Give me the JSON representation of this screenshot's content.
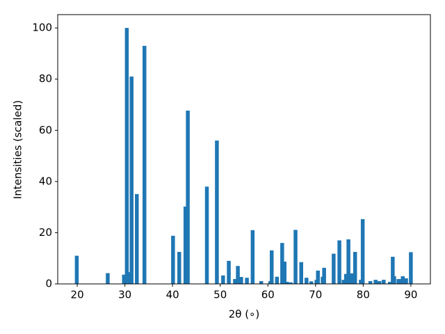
{
  "chart_data": {
    "type": "bar",
    "xlabel": "2θ (∘)",
    "ylabel": "Intensities (scaled)",
    "color": "#1f77b4",
    "x": [
      19.9,
      26.4,
      29.8,
      30.4,
      30.8,
      31.4,
      32.5,
      34.1,
      40.1,
      41.4,
      42.7,
      43.2,
      47.2,
      49.3,
      50.6,
      51.8,
      53.1,
      53.7,
      54.4,
      55.6,
      56.8,
      58.6,
      60.5,
      60.8,
      61.9,
      63.0,
      63.5,
      64.0,
      64.8,
      65.8,
      67.0,
      68.1,
      69.1,
      70.2,
      70.5,
      71.5,
      71.8,
      73.8,
      75.0,
      75.9,
      76.4,
      76.9,
      77.6,
      78.3,
      79.5,
      79.9,
      81.5,
      82.6,
      83.4,
      84.3,
      85.6,
      86.2,
      86.5,
      87.4,
      87.8,
      88.3,
      89.0,
      90.0
    ],
    "values": [
      11,
      4.2,
      3.6,
      100,
      4.6,
      81,
      35.1,
      93,
      18.8,
      12.5,
      30.2,
      67.7,
      38,
      56,
      3.3,
      9,
      1.9,
      7,
      2.7,
      2.4,
      21,
      1.1,
      1.1,
      13.1,
      2.8,
      16,
      8.7,
      0.8,
      0.6,
      21.1,
      8.5,
      2.4,
      1,
      1.6,
      5.2,
      2.8,
      6.3,
      11.8,
      17,
      1.6,
      3.9,
      17.4,
      4.1,
      12.5,
      1.6,
      25.3,
      1.1,
      1.6,
      1.1,
      1.6,
      0.8,
      10.6,
      3.0,
      1.9,
      1.9,
      3.0,
      2.2,
      12.4
    ],
    "xlim": [
      15.9,
      94.1
    ],
    "ylim": [
      0,
      105.2
    ],
    "xticks": [
      20,
      30,
      40,
      50,
      60,
      70,
      80,
      90
    ],
    "yticks": [
      0,
      20,
      40,
      60,
      80,
      100
    ]
  }
}
